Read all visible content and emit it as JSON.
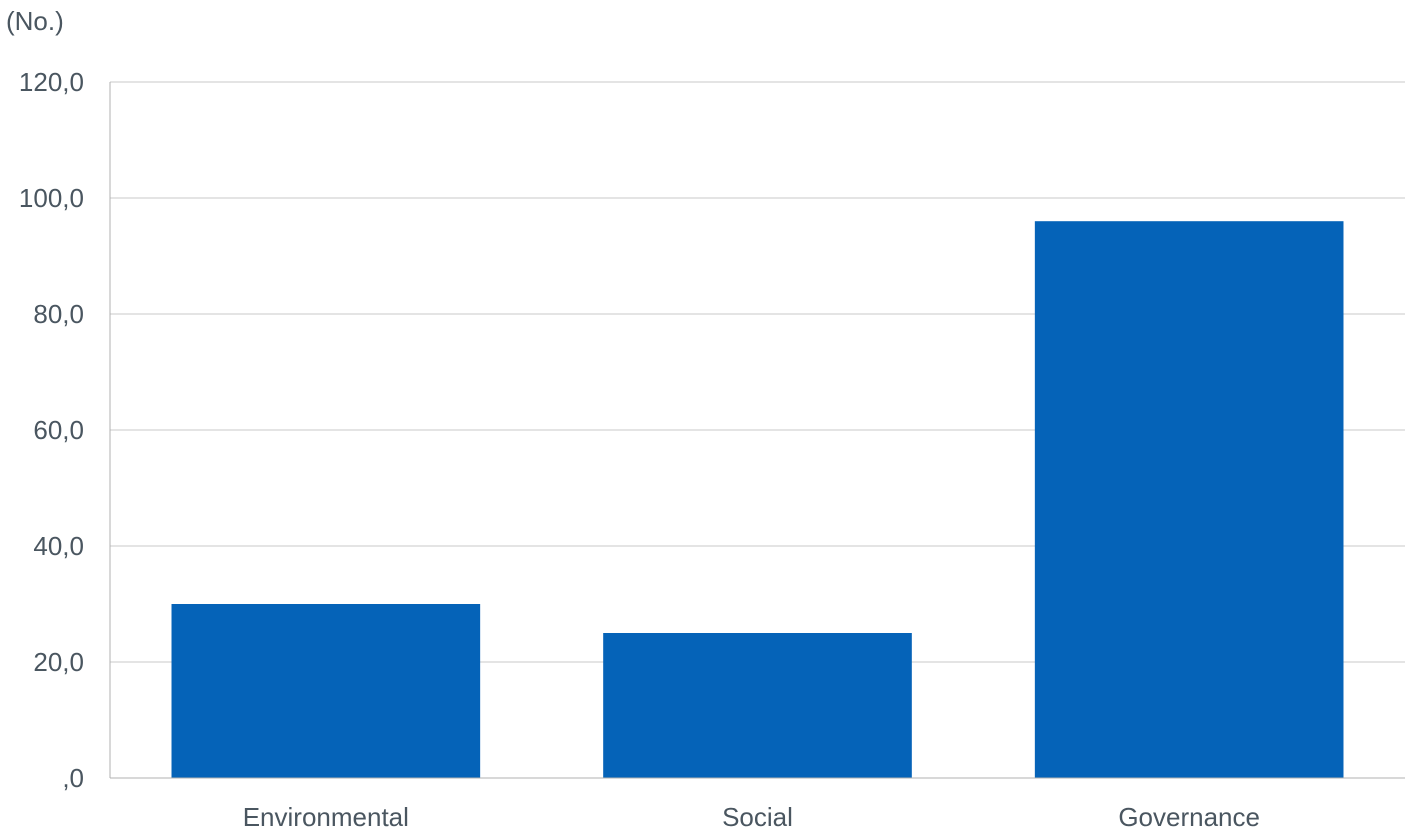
{
  "chart_data": {
    "type": "bar",
    "y_unit_label": "(No.)",
    "categories": [
      "Environmental",
      "Social",
      "Governance"
    ],
    "values": [
      30,
      25,
      96
    ],
    "ylim": [
      0,
      120
    ],
    "y_ticks": [
      0,
      20,
      40,
      60,
      80,
      100,
      120
    ],
    "y_tick_labels": [
      ",0",
      "20,0",
      "40,0",
      "60,0",
      "80,0",
      "100,0",
      "120,0"
    ],
    "grid": true,
    "legend": "none",
    "bar_color": "#0563b8"
  }
}
